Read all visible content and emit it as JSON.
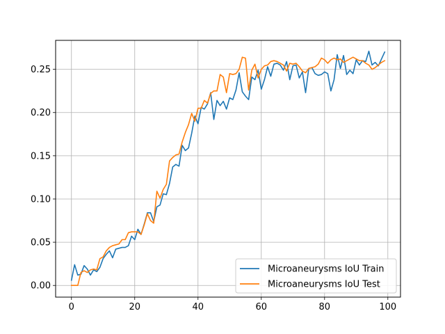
{
  "chart_data": {
    "type": "line",
    "title": "",
    "xlabel": "",
    "ylabel": "",
    "xlim": [
      -5,
      104
    ],
    "ylim": [
      -0.0135,
      0.2835
    ],
    "x_ticks": [
      0,
      20,
      40,
      60,
      80,
      100
    ],
    "x_tick_labels": [
      "0",
      "20",
      "40",
      "60",
      "80",
      "100"
    ],
    "y_ticks": [
      0.0,
      0.05,
      0.1,
      0.15,
      0.2,
      0.25
    ],
    "y_tick_labels": [
      "0.00",
      "0.05",
      "0.10",
      "0.15",
      "0.20",
      "0.25"
    ],
    "grid": true,
    "legend_position": "lower-right",
    "x": [
      0,
      1,
      2,
      3,
      4,
      5,
      6,
      7,
      8,
      9,
      10,
      11,
      12,
      13,
      14,
      15,
      16,
      17,
      18,
      19,
      20,
      21,
      22,
      23,
      24,
      25,
      26,
      27,
      28,
      29,
      30,
      31,
      32,
      33,
      34,
      35,
      36,
      37,
      38,
      39,
      40,
      41,
      42,
      43,
      44,
      45,
      46,
      47,
      48,
      49,
      50,
      51,
      52,
      53,
      54,
      55,
      56,
      57,
      58,
      59,
      60,
      61,
      62,
      63,
      64,
      65,
      66,
      67,
      68,
      69,
      70,
      71,
      72,
      73,
      74,
      75,
      76,
      77,
      78,
      79,
      80,
      81,
      82,
      83,
      84,
      85,
      86,
      87,
      88,
      89,
      90,
      91,
      92,
      93,
      94,
      95,
      96,
      97,
      98,
      99
    ],
    "series": [
      {
        "name": "Microaneurysms IoU Train",
        "color": "#1f77b4",
        "values": [
          0.006,
          0.024,
          0.012,
          0.013,
          0.023,
          0.019,
          0.012,
          0.018,
          0.016,
          0.021,
          0.031,
          0.036,
          0.04,
          0.032,
          0.042,
          0.043,
          0.044,
          0.044,
          0.046,
          0.057,
          0.053,
          0.065,
          0.059,
          0.071,
          0.084,
          0.084,
          0.074,
          0.091,
          0.093,
          0.106,
          0.105,
          0.118,
          0.137,
          0.14,
          0.138,
          0.162,
          0.156,
          0.159,
          0.176,
          0.196,
          0.187,
          0.206,
          0.204,
          0.21,
          0.223,
          0.192,
          0.214,
          0.208,
          0.213,
          0.204,
          0.217,
          0.215,
          0.226,
          0.246,
          0.224,
          0.219,
          0.215,
          0.241,
          0.238,
          0.249,
          0.227,
          0.238,
          0.253,
          0.242,
          0.256,
          0.257,
          0.255,
          0.249,
          0.259,
          0.238,
          0.254,
          0.255,
          0.24,
          0.247,
          0.223,
          0.251,
          0.252,
          0.245,
          0.243,
          0.244,
          0.247,
          0.245,
          0.225,
          0.238,
          0.267,
          0.251,
          0.266,
          0.244,
          0.249,
          0.245,
          0.261,
          0.255,
          0.26,
          0.259,
          0.271,
          0.255,
          0.258,
          0.254,
          0.262,
          0.27
        ]
      },
      {
        "name": "Microaneurysms IoU Test",
        "color": "#ff7f0e",
        "values": [
          0.0,
          0.0,
          0.0,
          0.015,
          0.017,
          0.015,
          0.018,
          0.019,
          0.018,
          0.031,
          0.033,
          0.04,
          0.044,
          0.046,
          0.047,
          0.048,
          0.053,
          0.053,
          0.061,
          0.062,
          0.062,
          0.062,
          0.059,
          0.07,
          0.083,
          0.075,
          0.072,
          0.109,
          0.101,
          0.111,
          0.117,
          0.144,
          0.148,
          0.151,
          0.152,
          0.166,
          0.177,
          0.186,
          0.199,
          0.19,
          0.205,
          0.205,
          0.214,
          0.211,
          0.222,
          0.225,
          0.225,
          0.244,
          0.241,
          0.223,
          0.245,
          0.244,
          0.245,
          0.25,
          0.264,
          0.263,
          0.226,
          0.249,
          0.256,
          0.24,
          0.25,
          0.254,
          0.255,
          0.259,
          0.26,
          0.259,
          0.257,
          0.255,
          0.248,
          0.257,
          0.256,
          0.257,
          0.253,
          0.248,
          0.246,
          0.251,
          0.252,
          0.253,
          0.256,
          0.263,
          0.261,
          0.257,
          0.261,
          0.263,
          0.261,
          0.262,
          0.258,
          0.26,
          0.262,
          0.264,
          0.262,
          0.26,
          0.26,
          0.257,
          0.255,
          0.25,
          0.252,
          0.255,
          0.258,
          0.26
        ]
      }
    ]
  }
}
